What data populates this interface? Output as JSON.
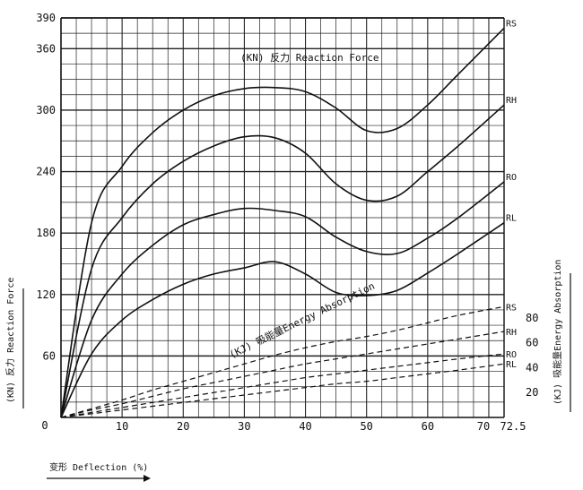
{
  "chart_data": {
    "type": "line",
    "x": [
      0,
      5,
      10,
      15,
      20,
      25,
      30,
      35,
      40,
      45,
      50,
      55,
      60,
      65,
      72.5
    ],
    "xlim": [
      0,
      72.5
    ],
    "x_ticks": [
      "10",
      "20",
      "30",
      "40",
      "50",
      "60",
      "70",
      "72.5"
    ],
    "xlabel": "变形 Deflection (%)",
    "origin_label": "0",
    "left_axis": {
      "label": "(KN) 反力 Reaction Force",
      "ylim": [
        0,
        390
      ],
      "ticks": [
        "60",
        "120",
        "180",
        "240",
        "300",
        "360",
        "390"
      ]
    },
    "right_axis": {
      "label": "(KJ) 吸能量Energy Absorption",
      "ylim": [
        0,
        100
      ],
      "ticks": [
        "20",
        "40",
        "60",
        "80"
      ]
    },
    "annotations": {
      "reaction_force": "(KN) 反力 Reaction Force",
      "energy_absorption": "(KJ) 吸能量Energy Absorption"
    },
    "series": [
      {
        "name": "RS",
        "axis": "left",
        "style": "solid",
        "values": [
          0,
          190,
          245,
          278,
          300,
          314,
          321,
          322,
          318,
          302,
          280,
          282,
          305,
          335,
          380
        ]
      },
      {
        "name": "RH",
        "axis": "left",
        "style": "solid",
        "values": [
          0,
          145,
          195,
          228,
          250,
          265,
          274,
          273,
          258,
          228,
          212,
          216,
          240,
          265,
          305
        ]
      },
      {
        "name": "RO",
        "axis": "left",
        "style": "solid",
        "values": [
          0,
          95,
          140,
          168,
          188,
          198,
          204,
          202,
          196,
          176,
          162,
          160,
          175,
          195,
          230
        ]
      },
      {
        "name": "RL",
        "axis": "left",
        "style": "solid",
        "values": [
          0,
          62,
          95,
          115,
          130,
          140,
          146,
          152,
          140,
          122,
          119,
          124,
          141,
          160,
          190
        ]
      },
      {
        "name": "RS",
        "axis": "right",
        "style": "dashed",
        "values": [
          0,
          7,
          14,
          22,
          29,
          36,
          43,
          50,
          56,
          61,
          65,
          70,
          76,
          82,
          89
        ]
      },
      {
        "name": "RH",
        "axis": "right",
        "style": "dashed",
        "values": [
          0,
          6,
          11,
          17,
          23,
          28,
          33,
          38,
          43,
          47,
          51,
          55,
          59,
          63,
          69
        ]
      },
      {
        "name": "RO",
        "axis": "right",
        "style": "dashed",
        "values": [
          0,
          4,
          8,
          12,
          16,
          20,
          24,
          28,
          32,
          35,
          38,
          41,
          44,
          47,
          51
        ]
      },
      {
        "name": "RL",
        "axis": "right",
        "style": "dashed",
        "values": [
          0,
          3,
          6,
          9,
          12,
          15,
          18,
          21,
          24,
          27,
          29,
          32,
          35,
          38,
          43
        ]
      }
    ],
    "grid": true,
    "legend": "none"
  }
}
